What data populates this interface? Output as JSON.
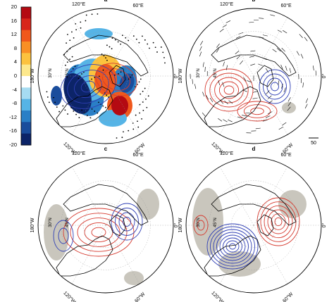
{
  "colorbar": {
    "ticks": [
      "20",
      "16",
      "12",
      "8",
      "4",
      "0",
      "-4",
      "-8",
      "-12",
      "-16",
      "-20"
    ],
    "colors": [
      "#b40a12",
      "#d8261a",
      "#f0581c",
      "#f98f25",
      "#fcc23e",
      "#fde88c",
      "#ffffff",
      "#a6dcf2",
      "#56b4e6",
      "#2a7fc6",
      "#1a4d9c",
      "#0c2468"
    ]
  },
  "panels": [
    {
      "letter": "a",
      "lon_labels": [
        "120°E",
        "60°E",
        "0°",
        "60°W",
        "120°W",
        "180°W"
      ],
      "lat_labels": [
        "30°N",
        "45°N"
      ]
    },
    {
      "letter": "b",
      "lon_labels": [
        "120°E",
        "60°E",
        "0°",
        "60°W",
        "120°W",
        "180°W"
      ],
      "lat_labels": [
        "30°N",
        "45°N"
      ],
      "vector_scale": "50"
    },
    {
      "letter": "c",
      "lon_labels": [
        "120°E",
        "60°E",
        "0°",
        "60°W",
        "120°W",
        "180°W"
      ],
      "lat_labels": [
        "30°N",
        "45°N"
      ]
    },
    {
      "letter": "d",
      "lon_labels": [
        "120°E",
        "60°E",
        "0°",
        "60°W",
        "120°W",
        "180°W"
      ],
      "lat_labels": [
        "30°N",
        "45°N"
      ]
    }
  ],
  "palette": {
    "positive_contour": "#d63a2f",
    "negative_contour": "#2f3fb5",
    "land_shading": "#c9c6bd",
    "coast": "#000000"
  }
}
